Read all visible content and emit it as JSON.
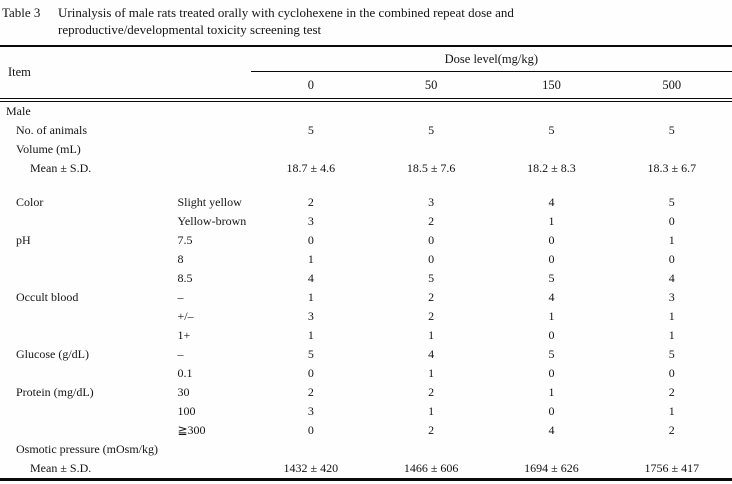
{
  "title": {
    "tag": "Table 3",
    "line1": "Urinalysis of male rats treated orally with cyclohexene in the combined repeat dose and",
    "line2": "reproductive/developmental toxicity screening test"
  },
  "table": {
    "item_header": "Item",
    "dose_header": "Dose level(mg/kg)",
    "dose_columns": [
      "0",
      "50",
      "150",
      "500"
    ],
    "rows": [
      {
        "label": "Male",
        "indent": 1,
        "sub": "",
        "values": [
          "",
          "",
          "",
          ""
        ]
      },
      {
        "label": "No. of animals",
        "indent": 2,
        "sub": "",
        "values": [
          "5",
          "5",
          "5",
          "5"
        ]
      },
      {
        "label": "Volume (mL)",
        "indent": 2,
        "sub": "",
        "values": [
          "",
          "",
          "",
          ""
        ]
      },
      {
        "label": "Mean ± S.D.",
        "indent": 3,
        "sub": "",
        "values": [
          "18.7 ± 4.6",
          "18.5 ± 7.6",
          "18.2 ± 8.3",
          "18.3 ± 6.7"
        ]
      },
      {
        "type": "spacer"
      },
      {
        "label": "Color",
        "indent": 2,
        "sub": "Slight yellow",
        "values": [
          "2",
          "3",
          "4",
          "5"
        ]
      },
      {
        "label": "",
        "indent": 2,
        "sub": "Yellow-brown",
        "values": [
          "3",
          "2",
          "1",
          "0"
        ]
      },
      {
        "label": "pH",
        "indent": 2,
        "sub": "7.5",
        "values": [
          "0",
          "0",
          "0",
          "1"
        ]
      },
      {
        "label": "",
        "indent": 2,
        "sub": "8",
        "values": [
          "1",
          "0",
          "0",
          "0"
        ]
      },
      {
        "label": "",
        "indent": 2,
        "sub": "8.5",
        "values": [
          "4",
          "5",
          "5",
          "4"
        ]
      },
      {
        "label": "Occult blood",
        "indent": 2,
        "sub": "–",
        "values": [
          "1",
          "2",
          "4",
          "3"
        ]
      },
      {
        "label": "",
        "indent": 2,
        "sub": "+/–",
        "values": [
          "3",
          "2",
          "1",
          "1"
        ]
      },
      {
        "label": "",
        "indent": 2,
        "sub": "1+",
        "values": [
          "1",
          "1",
          "0",
          "1"
        ]
      },
      {
        "label": "Glucose (g/dL)",
        "indent": 2,
        "sub": "–",
        "values": [
          "5",
          "4",
          "5",
          "5"
        ]
      },
      {
        "label": "",
        "indent": 2,
        "sub": "0.1",
        "values": [
          "0",
          "1",
          "0",
          "0"
        ]
      },
      {
        "label": "Protein (mg/dL)",
        "indent": 2,
        "sub": "30",
        "values": [
          "2",
          "2",
          "1",
          "2"
        ]
      },
      {
        "label": "",
        "indent": 2,
        "sub": "100",
        "values": [
          "3",
          "1",
          "0",
          "1"
        ]
      },
      {
        "label": "",
        "indent": 2,
        "sub": "≧300",
        "values": [
          "0",
          "2",
          "4",
          "2"
        ]
      },
      {
        "label": "Osmotic pressure (mOsm/kg)",
        "indent": 2,
        "sub": "",
        "values": [
          "",
          "",
          "",
          ""
        ]
      },
      {
        "label": "Mean ± S.D.",
        "indent": 3,
        "sub": "",
        "values": [
          "1432 ± 420",
          "1466 ± 606",
          "1694 ± 626",
          "1756 ± 417"
        ]
      }
    ]
  }
}
